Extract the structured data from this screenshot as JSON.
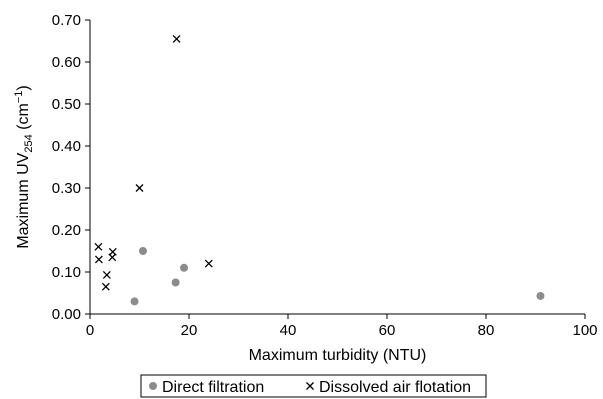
{
  "chart_data": {
    "type": "scatter",
    "title": "",
    "xlabel": "Maximum turbidity (NTU)",
    "ylabel": {
      "prefix": "Maximum UV",
      "subscript": "254",
      "unit_open": " (cm",
      "superscript": "−1",
      "unit_close": ")"
    },
    "xlim": [
      0,
      100
    ],
    "ylim": [
      0,
      0.7
    ],
    "x_ticks": [
      0,
      20,
      40,
      60,
      80,
      100
    ],
    "y_ticks": [
      0.0,
      0.1,
      0.2,
      0.3,
      0.4,
      0.5,
      0.6,
      0.7
    ],
    "x_tick_labels": [
      "0",
      "20",
      "40",
      "60",
      "80",
      "100"
    ],
    "y_tick_labels": [
      "0.00",
      "0.10",
      "0.20",
      "0.30",
      "0.40",
      "0.50",
      "0.60",
      "0.70"
    ],
    "grid": false,
    "legend_position": "bottom",
    "series": [
      {
        "name": "Direct filtration",
        "marker": "circle",
        "color": "#8c8c8c",
        "points": [
          {
            "x": 9,
            "y": 0.03
          },
          {
            "x": 10.7,
            "y": 0.15
          },
          {
            "x": 17.3,
            "y": 0.075
          },
          {
            "x": 19,
            "y": 0.11
          },
          {
            "x": 91,
            "y": 0.043
          }
        ]
      },
      {
        "name": "Dissolved air flotation",
        "marker": "x",
        "color": "#000000",
        "points": [
          {
            "x": 1.7,
            "y": 0.16
          },
          {
            "x": 1.8,
            "y": 0.13
          },
          {
            "x": 3.2,
            "y": 0.065
          },
          {
            "x": 3.4,
            "y": 0.093
          },
          {
            "x": 4.5,
            "y": 0.135
          },
          {
            "x": 4.6,
            "y": 0.148
          },
          {
            "x": 10,
            "y": 0.3
          },
          {
            "x": 17.5,
            "y": 0.655
          },
          {
            "x": 24,
            "y": 0.12
          }
        ]
      }
    ]
  }
}
